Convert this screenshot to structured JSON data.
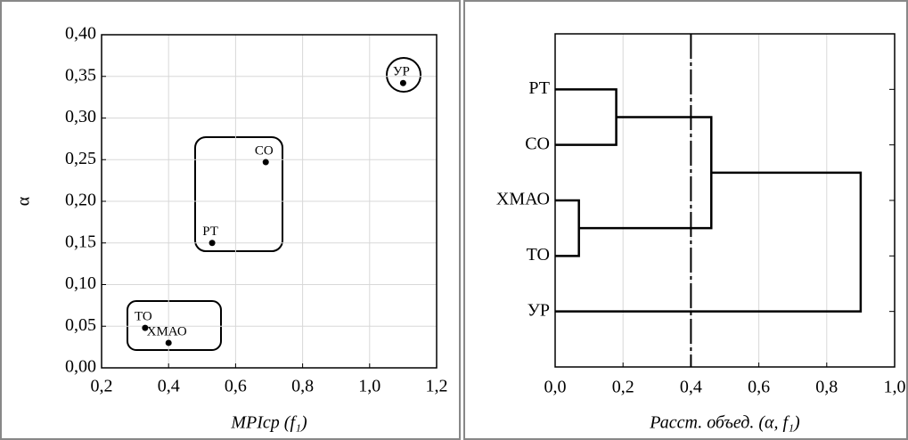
{
  "chart_data": [
    {
      "type": "scatter",
      "x_label": "MPIcp (f₁)",
      "y_label": "α",
      "labels": [
        "УР",
        "СО",
        "РТ",
        "ТО",
        "ХМАО"
      ],
      "x": [
        1.1,
        0.69,
        0.53,
        0.33,
        0.4
      ],
      "values": [
        0.342,
        0.247,
        0.15,
        0.048,
        0.03
      ],
      "color": "#000000",
      "xlim": [
        0.2,
        1.2
      ],
      "ylim": [
        0,
        0.4
      ],
      "xticks": [
        {
          "value": 0.2,
          "label": "0,2"
        },
        {
          "value": 0.4,
          "label": "0,4"
        },
        {
          "value": 0.6,
          "label": "0,6"
        },
        {
          "value": 0.8,
          "label": "0,8"
        },
        {
          "value": 1.0,
          "label": "1,0"
        },
        {
          "value": 1.2,
          "label": "1,2"
        }
      ],
      "yticks": [
        {
          "value": 0,
          "label": "0,00"
        },
        {
          "value": 0.05,
          "label": "0,05"
        },
        {
          "value": 0.1,
          "label": "0,10"
        },
        {
          "value": 0.15,
          "label": "0,15"
        },
        {
          "value": 0.2,
          "label": "0,20"
        },
        {
          "value": 0.25,
          "label": "0,25"
        },
        {
          "value": 0.3,
          "label": "0,30"
        },
        {
          "value": 0.35,
          "label": "0,35"
        },
        {
          "value": 0.4,
          "label": "0,40"
        }
      ],
      "grid": true
    },
    {
      "type": "dendrogram",
      "x_label": "Расст. объед. (α, f₁)",
      "leaves": [
        "РТ",
        "СО",
        "ХМАО",
        "ТО",
        "УР"
      ],
      "merges": [
        {
          "children": [
            0,
            1
          ],
          "distance": 0.18
        },
        {
          "children": [
            2,
            3
          ],
          "distance": 0.07
        },
        {
          "children": [
            5,
            6
          ],
          "distance": 0.46
        },
        {
          "children": [
            7,
            4
          ],
          "distance": 0.9
        }
      ],
      "cut": 0.4,
      "color": "#000000",
      "xlim": [
        0,
        1.0
      ],
      "xticks": [
        {
          "value": 0,
          "label": "0,0"
        },
        {
          "value": 0.2,
          "label": "0,2"
        },
        {
          "value": 0.4,
          "label": "0,4"
        },
        {
          "value": 0.6,
          "label": "0,6"
        },
        {
          "value": 0.8,
          "label": "0,8"
        },
        {
          "value": 1.0,
          "label": "1,0"
        }
      ],
      "grid": true
    }
  ]
}
